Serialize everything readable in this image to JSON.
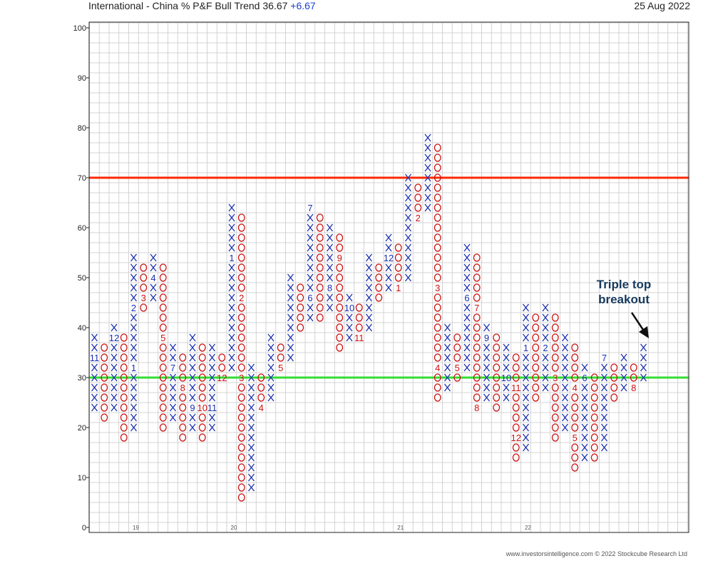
{
  "header": {
    "title": "International - China % P&F Bull Trend",
    "value": "36.67",
    "change": "+6.67",
    "date": "25 Aug 2022"
  },
  "footer": {
    "credit": "www.investorsintelligence.com  © 2022 Stockcube Research Ltd"
  },
  "colors": {
    "x_color": "#1a2fb0",
    "o_color": "#cc1111",
    "upper_line": "#ff2a00",
    "lower_line": "#33dd33",
    "grid": "#c8c8c8",
    "annotation_text": "#173a5e"
  },
  "chart_data": {
    "type": "point-and-figure",
    "box_size": 2,
    "ylim": [
      0,
      100
    ],
    "y_ticks": [
      0,
      10,
      20,
      30,
      40,
      50,
      60,
      70,
      80,
      90,
      100
    ],
    "year_labels": [
      {
        "label": "19",
        "column": 4
      },
      {
        "label": "20",
        "column": 14
      },
      {
        "label": "21",
        "column": 31
      },
      {
        "label": "22",
        "column": 44
      }
    ],
    "horizontal_lines": [
      {
        "value": 70,
        "color": "#ff2a00"
      },
      {
        "value": 30,
        "color": "#33dd33"
      }
    ],
    "annotation": {
      "text": [
        "Triple top",
        "breakout"
      ],
      "points_to_column": 57,
      "points_to_value": 36
    },
    "columns": [
      {
        "type": "X",
        "low": 24,
        "high": 38,
        "months": [
          {
            "label": "11",
            "value": 34
          }
        ]
      },
      {
        "type": "O",
        "low": 22,
        "high": 36
      },
      {
        "type": "X",
        "low": 24,
        "high": 40,
        "months": [
          {
            "label": "12",
            "value": 38
          }
        ]
      },
      {
        "type": "O",
        "low": 18,
        "high": 38
      },
      {
        "type": "X",
        "low": 20,
        "high": 54,
        "months": [
          {
            "label": "1",
            "value": 32
          },
          {
            "label": "2",
            "value": 44
          }
        ]
      },
      {
        "type": "O",
        "low": 44,
        "high": 52,
        "months": [
          {
            "label": "3",
            "value": 46
          }
        ]
      },
      {
        "type": "X",
        "low": 46,
        "high": 54,
        "months": [
          {
            "label": "4",
            "value": 50
          }
        ]
      },
      {
        "type": "O",
        "low": 20,
        "high": 52,
        "months": [
          {
            "label": "5",
            "value": 38
          }
        ]
      },
      {
        "type": "X",
        "low": 22,
        "high": 36,
        "months": [
          {
            "label": "7",
            "value": 32
          }
        ]
      },
      {
        "type": "O",
        "low": 18,
        "high": 34,
        "months": [
          {
            "label": "8",
            "value": 28
          }
        ]
      },
      {
        "type": "X",
        "low": 20,
        "high": 38,
        "months": [
          {
            "label": "9",
            "value": 24
          }
        ]
      },
      {
        "type": "O",
        "low": 18,
        "high": 36,
        "months": [
          {
            "label": "10",
            "value": 24
          }
        ]
      },
      {
        "type": "X",
        "low": 20,
        "high": 36,
        "months": [
          {
            "label": "11",
            "value": 24
          }
        ]
      },
      {
        "type": "O",
        "low": 30,
        "high": 34,
        "months": [
          {
            "label": "12",
            "value": 30
          }
        ]
      },
      {
        "type": "X",
        "low": 32,
        "high": 64,
        "months": [
          {
            "label": "1",
            "value": 54
          }
        ]
      },
      {
        "type": "O",
        "low": 6,
        "high": 62,
        "months": [
          {
            "label": "2",
            "value": 46
          },
          {
            "label": "3",
            "value": 30
          }
        ]
      },
      {
        "type": "X",
        "low": 8,
        "high": 32
      },
      {
        "type": "O",
        "low": 24,
        "high": 30,
        "months": [
          {
            "label": "4",
            "value": 24
          }
        ]
      },
      {
        "type": "X",
        "low": 26,
        "high": 38
      },
      {
        "type": "O",
        "low": 32,
        "high": 36,
        "months": [
          {
            "label": "5",
            "value": 32
          }
        ]
      },
      {
        "type": "X",
        "low": 34,
        "high": 50
      },
      {
        "type": "O",
        "low": 40,
        "high": 48
      },
      {
        "type": "X",
        "low": 42,
        "high": 64,
        "months": [
          {
            "label": "6",
            "value": 46
          },
          {
            "label": "7",
            "value": 64
          }
        ]
      },
      {
        "type": "O",
        "low": 42,
        "high": 62
      },
      {
        "type": "X",
        "low": 44,
        "high": 60,
        "months": [
          {
            "label": "8",
            "value": 48
          }
        ]
      },
      {
        "type": "O",
        "low": 36,
        "high": 58,
        "months": [
          {
            "label": "9",
            "value": 54
          }
        ]
      },
      {
        "type": "X",
        "low": 38,
        "high": 46,
        "months": [
          {
            "label": "10",
            "value": 44
          }
        ]
      },
      {
        "type": "O",
        "low": 38,
        "high": 44,
        "months": [
          {
            "label": "11",
            "value": 38
          }
        ]
      },
      {
        "type": "X",
        "low": 40,
        "high": 54
      },
      {
        "type": "O",
        "low": 46,
        "high": 52
      },
      {
        "type": "X",
        "low": 48,
        "high": 58,
        "months": [
          {
            "label": "12",
            "value": 54
          }
        ]
      },
      {
        "type": "O",
        "low": 48,
        "high": 56,
        "months": [
          {
            "label": "1",
            "value": 48
          }
        ]
      },
      {
        "type": "X",
        "low": 50,
        "high": 70
      },
      {
        "type": "O",
        "low": 62,
        "high": 68,
        "months": [
          {
            "label": "2",
            "value": 62
          }
        ]
      },
      {
        "type": "X",
        "low": 64,
        "high": 78
      },
      {
        "type": "O",
        "low": 26,
        "high": 76,
        "months": [
          {
            "label": "3",
            "value": 48
          },
          {
            "label": "4",
            "value": 32
          }
        ]
      },
      {
        "type": "X",
        "low": 28,
        "high": 40
      },
      {
        "type": "O",
        "low": 30,
        "high": 38,
        "months": [
          {
            "label": "5",
            "value": 32
          }
        ]
      },
      {
        "type": "X",
        "low": 32,
        "high": 56,
        "months": [
          {
            "label": "6",
            "value": 46
          }
        ]
      },
      {
        "type": "O",
        "low": 24,
        "high": 54,
        "months": [
          {
            "label": "7",
            "value": 44
          },
          {
            "label": "8",
            "value": 24
          }
        ]
      },
      {
        "type": "X",
        "low": 26,
        "high": 40,
        "months": [
          {
            "label": "9",
            "value": 38
          }
        ]
      },
      {
        "type": "O",
        "low": 24,
        "high": 38
      },
      {
        "type": "X",
        "low": 26,
        "high": 36,
        "months": [
          {
            "label": "10",
            "value": 30
          }
        ]
      },
      {
        "type": "O",
        "low": 14,
        "high": 34,
        "months": [
          {
            "label": "11",
            "value": 28
          },
          {
            "label": "12",
            "value": 18
          }
        ]
      },
      {
        "type": "X",
        "low": 16,
        "high": 44,
        "months": [
          {
            "label": "1",
            "value": 36
          }
        ]
      },
      {
        "type": "O",
        "low": 26,
        "high": 42
      },
      {
        "type": "X",
        "low": 28,
        "high": 44,
        "months": [
          {
            "label": "2",
            "value": 36
          }
        ]
      },
      {
        "type": "O",
        "low": 18,
        "high": 42,
        "months": [
          {
            "label": "3",
            "value": 30
          }
        ]
      },
      {
        "type": "X",
        "low": 20,
        "high": 38
      },
      {
        "type": "O",
        "low": 12,
        "high": 36,
        "months": [
          {
            "label": "4",
            "value": 28
          },
          {
            "label": "5",
            "value": 18
          }
        ]
      },
      {
        "type": "X",
        "low": 14,
        "high": 32,
        "months": [
          {
            "label": "6",
            "value": 30
          }
        ]
      },
      {
        "type": "O",
        "low": 14,
        "high": 30
      },
      {
        "type": "X",
        "low": 16,
        "high": 34,
        "months": [
          {
            "label": "7",
            "value": 34
          }
        ]
      },
      {
        "type": "O",
        "low": 26,
        "high": 32
      },
      {
        "type": "X",
        "low": 28,
        "high": 34
      },
      {
        "type": "O",
        "low": 28,
        "high": 32,
        "months": [
          {
            "label": "8",
            "value": 28
          }
        ]
      },
      {
        "type": "X",
        "low": 30,
        "high": 36
      }
    ]
  }
}
